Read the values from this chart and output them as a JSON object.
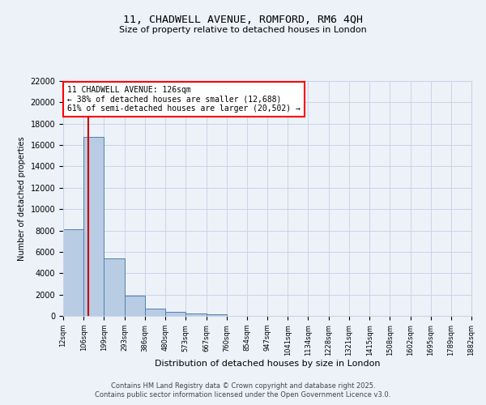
{
  "title": "11, CHADWELL AVENUE, ROMFORD, RM6 4QH",
  "subtitle": "Size of property relative to detached houses in London",
  "xlabel": "Distribution of detached houses by size in London",
  "ylabel": "Number of detached properties",
  "property_size": 126,
  "property_label": "11 CHADWELL AVENUE: 126sqm",
  "annotation_line1": "← 38% of detached houses are smaller (12,688)",
  "annotation_line2": "61% of semi-detached houses are larger (20,502) →",
  "bar_edges": [
    12,
    106,
    199,
    293,
    386,
    480,
    573,
    667,
    760,
    854,
    947,
    1041,
    1134,
    1228,
    1321,
    1415,
    1508,
    1602,
    1695,
    1789,
    1882
  ],
  "bar_heights": [
    8100,
    16800,
    5400,
    1900,
    700,
    350,
    200,
    150,
    0,
    0,
    0,
    0,
    0,
    0,
    0,
    0,
    0,
    0,
    0,
    0
  ],
  "bar_color": "#b8cce4",
  "bar_edge_color": "#5080b0",
  "grid_color": "#c8d4e8",
  "bg_color": "#edf2f9",
  "vline_color": "#cc0000",
  "ylim": [
    0,
    22000
  ],
  "yticks": [
    0,
    2000,
    4000,
    6000,
    8000,
    10000,
    12000,
    14000,
    16000,
    18000,
    20000,
    22000
  ],
  "footer_line1": "Contains HM Land Registry data © Crown copyright and database right 2025.",
  "footer_line2": "Contains public sector information licensed under the Open Government Licence v3.0."
}
